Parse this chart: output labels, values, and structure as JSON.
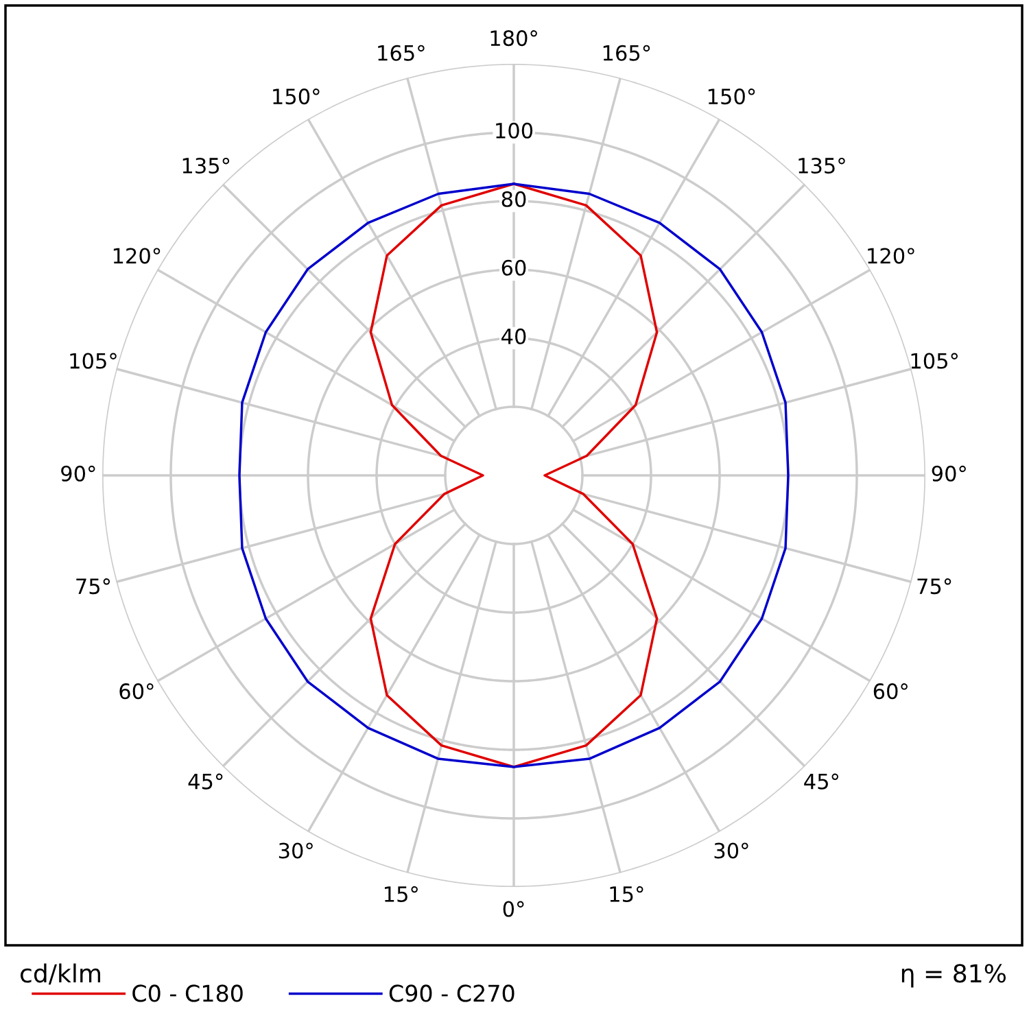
{
  "chart_data": {
    "type": "radar",
    "categories": [
      "180°",
      "165°",
      "150°",
      "135°",
      "120°",
      "105°",
      "90°",
      "75°",
      "60°",
      "45°",
      "30°",
      "15°",
      "0°",
      "15°",
      "30°",
      "45°",
      "60°",
      "75°",
      "90°",
      "105°",
      "120°",
      "135°",
      "150°",
      "165°"
    ],
    "series": [
      {
        "name": "C0 - C180",
        "color": "#e00000",
        "values": [
          85,
          81.5,
          74,
          59,
          41,
          22,
          9,
          21,
          40,
          59,
          74,
          81.5,
          85,
          81.5,
          74,
          59,
          40,
          21,
          9,
          22,
          41,
          59,
          74,
          81.5
        ]
      },
      {
        "name": "C90 - C270",
        "color": "#0000cc",
        "values": [
          85,
          85,
          85,
          85,
          83.5,
          82,
          80,
          82,
          83.5,
          85,
          85,
          85.5,
          85,
          85.5,
          85,
          85,
          83.5,
          82,
          80,
          82,
          83.5,
          85,
          85,
          85
        ]
      }
    ],
    "ylim": [
      0,
      120
    ],
    "yticks": [
      40,
      60,
      80,
      100
    ],
    "grid": true,
    "legend": "bottom",
    "ylabel": "cd/klm",
    "annotations": [
      "η = 81%"
    ]
  }
}
